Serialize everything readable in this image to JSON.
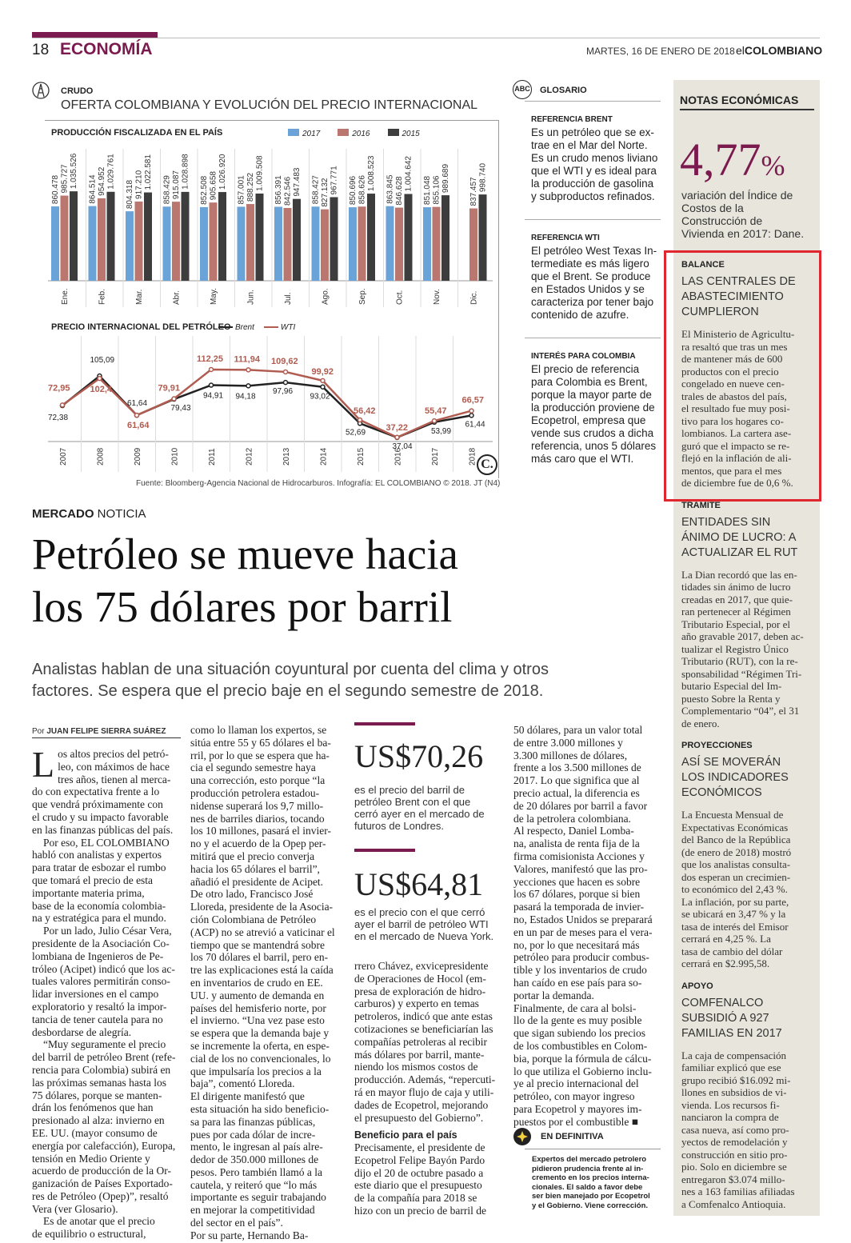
{
  "header": {
    "page_number": "18",
    "section": "ECONOMÍA",
    "date": "MARTES, 16 DE ENERO DE 2018",
    "paper_el": "el",
    "paper_name": "COLOMBIANO"
  },
  "infographic": {
    "kicker": "CRUDO",
    "title": "OFERTA COLOMBIANA Y EVOLUCIÓN DEL PRECIO INTERNACIONAL",
    "source": "Fuente: Bloomberg-Agencia Nacional de Hidrocarburos. Infografía: EL COLOMBIANO © 2018. JT (N4)",
    "logo": "C."
  },
  "chart_data": [
    {
      "type": "bar",
      "title": "PRODUCCIÓN FISCALIZADA EN EL PAÍS",
      "categories": [
        "Ene.",
        "Feb.",
        "Mar.",
        "Abr.",
        "May.",
        "Jun.",
        "Jul.",
        "Ago.",
        "Sep.",
        "Oct.",
        "Nov.",
        "Dic."
      ],
      "series": [
        {
          "name": "2017",
          "color": "#6aa3d8",
          "values": [
            860478,
            864514,
            804318,
            858429,
            852508,
            857001,
            856391,
            858427,
            850696,
            863845,
            851048,
            null
          ],
          "labels": [
            "860.478",
            "864.514",
            "804.318",
            "858.429",
            "852.508",
            "857.001",
            "856.391",
            "858.427",
            "850.696",
            "863.845",
            "851.048",
            ""
          ]
        },
        {
          "name": "2016",
          "color": "#b9776f",
          "values": [
            985727,
            954952,
            917210,
            915087,
            905658,
            888252,
            842546,
            827132,
            858626,
            846628,
            855106,
            837457
          ],
          "labels": [
            "985.727",
            "954.952",
            "917.210",
            "915.087",
            "905.658",
            "888.252",
            "842.546",
            "827.132",
            "858.626",
            "846.628",
            "855.106",
            "837.457"
          ]
        },
        {
          "name": "2015",
          "color": "#3d3d3d",
          "values": [
            1035526,
            1029761,
            1022581,
            1028898,
            1026920,
            1009508,
            947483,
            967771,
            1008523,
            1004642,
            989689,
            998740
          ],
          "labels": [
            "1.035.526",
            "1.029.761",
            "1.022.581",
            "1.028.898",
            "1.026.920",
            "1.009.508",
            "947.483",
            "967.771",
            "1.008.523",
            "1.004.642",
            "989.689",
            "998.740"
          ]
        }
      ]
    },
    {
      "type": "line",
      "title": "PRECIO INTERNACIONAL DEL PETRÓLEO",
      "x": [
        "2007",
        "2008",
        "2009",
        "2010",
        "2011",
        "2012",
        "2013",
        "2014",
        "2015",
        "2016",
        "2017",
        "2018"
      ],
      "series": [
        {
          "name": "Brent",
          "color": "#222222",
          "values": [
            72.38,
            105.09,
            61.64,
            79.43,
            94.91,
            94.18,
            97.96,
            93.02,
            52.69,
            37.04,
            53.99,
            61.44
          ],
          "labels": [
            "72,38",
            "105,09",
            "61,64",
            "79,43",
            "94,91",
            "94,18",
            "97,96",
            "93,02",
            "52,69",
            "37,04",
            "53,99",
            "61,44"
          ]
        },
        {
          "name": "WTI",
          "color": "#b05c50",
          "values": [
            72.95,
            102.4,
            61.64,
            79.91,
            112.25,
            111.94,
            109.62,
            99.92,
            56.42,
            37.22,
            55.47,
            66.57
          ],
          "labels": [
            "72,95",
            "102,4",
            "61,64",
            "79,91",
            "112,25",
            "111,94",
            "109,62",
            "99,92",
            "56,42",
            "37,22",
            "55,47",
            "66,57"
          ]
        }
      ]
    }
  ],
  "glossary": {
    "badge": "ABC",
    "title": "GLOSARIO",
    "items": [
      {
        "heading": "REFERENCIA BRENT",
        "lines": [
          "Es un petróleo que se ex-",
          "trae en el Mar del Norte.",
          "Es un crudo menos liviano",
          "que el WTI y es ideal para",
          "la producción de gasolina",
          "y subproductos refinados."
        ]
      },
      {
        "heading": "REFERENCIA WTI",
        "lines": [
          "El petróleo West Texas In-",
          "termediate es más ligero",
          "que el Brent. Se produce",
          "en Estados Unidos y se",
          "caracteriza por tener bajo",
          "contenido de azufre."
        ]
      },
      {
        "heading": "INTERÉS PARA COLOMBIA",
        "lines": [
          "El precio de referencia",
          "para Colombia es Brent,",
          "porque la mayor parte de",
          "la producción proviene de",
          "Ecopetrol, empresa que",
          "vende sus crudos a dicha",
          "referencia, unos 5 dólares",
          "más caro que el WTI."
        ]
      }
    ]
  },
  "sidebar": {
    "title": "NOTAS ECONÓMICAS",
    "big_number": "4,77",
    "big_unit": "%",
    "big_lines": [
      "variación del Índice de",
      "Costos de la",
      "Construcción de",
      "Vivienda en 2017: Dane."
    ],
    "notes": [
      {
        "label": "BALANCE",
        "head": [
          "LAS CENTRALES DE",
          "ABASTECIMIENTO",
          "CUMPLIERON"
        ],
        "lines": [
          "El Ministerio de Agricultu-",
          "ra resaltó que tras un mes",
          "de mantener más de 600",
          "productos con el precio",
          "congelado en nueve cen-",
          "trales de abastos del país,",
          "el resultado fue muy posi-",
          "tivo para los hogares co-",
          "lombianos. La cartera ase-",
          "guró que el impacto se re-",
          "flejó en la inflación de ali-",
          "mentos, que para el mes",
          "de diciembre fue de 0,6 %."
        ]
      },
      {
        "label": "TRÁMITE",
        "head": [
          "ENTIDADES SIN",
          "ÁNIMO DE LUCRO: A",
          "ACTUALIZAR EL RUT"
        ],
        "lines": [
          "La Dian recordó que las en-",
          "tidades sin ánimo de lucro",
          "creadas en 2017, que quie-",
          "ran pertenecer al Régimen",
          "Tributario Especial, por el",
          "año gravable 2017, deben ac-",
          "tualizar el Registro Único",
          "Tributario (RUT), con la re-",
          "sponsabilidad “Régimen Tri-",
          "butario Especial del Im-",
          "puesto Sobre la Renta y",
          "Complementario “04”, el 31",
          "de enero."
        ]
      },
      {
        "label": "PROYECCIONES",
        "head": [
          "ASÍ SE MOVERÁN",
          "LOS INDICADORES",
          "ECONÓMICOS"
        ],
        "lines": [
          "La Encuesta Mensual de",
          "Expectativas Económicas",
          "del Banco de la República",
          "(de enero de 2018) mostró",
          "que los analistas consulta-",
          "dos esperan un crecimien-",
          "to económico del 2,43 %.",
          "La inflación, por su parte,",
          "se ubicará en 3,47 % y la",
          "tasa de interés del Emisor",
          "cerrará en 4,25 %. La",
          "tasa de cambio del dólar",
          "cerrará en $2.995,58."
        ]
      },
      {
        "label": "APOYO",
        "head": [
          "COMFENALCO",
          "SUBSIDIÓ A 927",
          "FAMILIAS EN 2017"
        ],
        "lines": [
          "La caja de compensación",
          "familiar explicó que ese",
          "grupo recibió $16.092 mi-",
          "llones en subsidios de vi-",
          "vienda. Los recursos fi-",
          "nanciaron la compra de",
          "casa nueva, así como pro-",
          "yectos de remodelación y",
          "construcción en sitio pro-",
          "pio. Solo en diciembre se",
          "entregaron $3.074 millo-",
          "nes a 163 familias afiliadas",
          "a Comfenalco Antioquia."
        ]
      }
    ]
  },
  "article": {
    "kicker_bold": "MERCADO",
    "kicker_rest": " NOTICIA",
    "headline": [
      "Petróleo se mueve hacia",
      "los 75 dólares por barril"
    ],
    "dek": [
      "Analistas hablan de una situación coyuntural por cuenta del clima y otros",
      "factores. Se espera que el precio baje en el segundo semestre de 2018."
    ],
    "byline_pre": "Por ",
    "byline_name": "JUAN FELIPE SIERRA SUÁREZ",
    "col1": [
      "L",
      "os altos precios del petró-",
      "leo, con máximos de hace",
      "tres años, tienen al merca-",
      "do con expectativa frente a lo",
      "que vendrá próximamente con",
      "el crudo y su impacto favorable",
      "en las finanzas públicas del país.",
      "Por eso, EL COLOMBIANO",
      "habló con analistas y expertos",
      "para tratar de esbozar el rumbo",
      "que tomará el precio de esta",
      "importante materia prima,",
      "base de la economía colombia-",
      "na y estratégica para el mundo.",
      "Por un lado, Julio César Vera,",
      "presidente de la Asociación Co-",
      "lombiana de Ingenieros de Pe-",
      "tróleo (Acipet) indicó que los ac-",
      "tuales valores permitirán conso-",
      "lidar inversiones en el campo",
      "exploratorio y resaltó la impor-",
      "tancia de tener cautela para no",
      "desbordarse de alegría.",
      "“Muy seguramente el precio",
      "del barril de petróleo Brent (refe-",
      "rencia para Colombia) subirá en",
      "las próximas semanas hasta los",
      "75 dólares, porque se manten-",
      "drán los fenómenos que han",
      "presionado al alza: invierno en",
      "EE. UU. (mayor consumo de",
      "energía por calefacción), Europa,",
      "tensión en Medio Oriente y",
      "acuerdo de producción de la Or-",
      "ganización de Países Exportado-",
      "res de Petróleo (Opep)”, resaltó",
      "Vera (ver Glosario).",
      "Es de anotar que el precio",
      "de equilibrio o estructural,"
    ],
    "col2": [
      "como lo llaman los expertos, se",
      "sitúa entre 55 y 65 dólares el ba-",
      "rril, por lo que se espera que ha-",
      "cia el segundo semestre haya",
      "una corrección, esto porque “la",
      "producción petrolera estadou-",
      "nidense superará los 9,7 millo-",
      "nes de barriles diarios, tocando",
      "los 10 millones, pasará el invier-",
      "no y el acuerdo de la Opep per-",
      "mitirá que el precio converja",
      "hacia los 65 dólares el barril”,",
      "añadió el presidente de Acipet.",
      "De otro lado, Francisco José",
      "Lloreda, presidente de la Asocia-",
      "ción Colombiana de Petróleo",
      "(ACP) no se atrevió a vaticinar el",
      "tiempo que se mantendrá sobre",
      "los 70 dólares el barril, pero en-",
      "tre las explicaciones está la caída",
      "en inventarios de crudo en EE.",
      "UU. y aumento de demanda en",
      "países del hemisferio norte, por",
      "el invierno. “Una vez pase esto",
      "se espera que la demanda baje y",
      "se incremente la oferta, en espe-",
      "cial de los no convencionales, lo",
      "que impulsaría los precios a la",
      "baja”, comentó Lloreda.",
      "El dirigente manifestó que",
      "esta situación ha sido beneficio-",
      "sa para las finanzas públicas,",
      "pues por cada dólar de incre-",
      "mento, le ingresan al país alre-",
      "dedor de 350.000 millones de",
      "pesos. Pero también llamó a la",
      "cautela, y reiteró que “lo más",
      "importante es seguir trabajando",
      "en mejorar la competitividad",
      "del sector en el país”.",
      "Por su parte, Hernando Ba-"
    ],
    "quote1_value": "US$70,26",
    "quote1_lines": [
      "es el precio del barril de",
      "petróleo Brent con el que",
      "cerró ayer en el mercado de",
      "futuros de Londres."
    ],
    "quote2_value": "US$64,81",
    "quote2_lines": [
      "es el precio con el que cerró",
      "ayer el barril de petróleo WTI",
      "en el mercado de Nueva York."
    ],
    "col3": [
      "rrero Chávez, exvicepresidente",
      "de Operaciones de Hocol (em-",
      "presa de exploración de hidro-",
      "carburos) y experto en temas",
      "petroleros, indicó que ante estas",
      "cotizaciones se beneficiarían las",
      "compañías petroleras al recibir",
      "más dólares por barril, mante-",
      "niendo los mismos costos de",
      "producción. Además, “repercuti-",
      "rá en mayor flujo de caja y utili-",
      "dades de Ecopetrol, mejorando",
      "el presupuesto del Gobierno”."
    ],
    "sub_head": "Beneficio para el país",
    "col3b": [
      "Precisamente, el presidente de",
      "Ecopetrol Felipe Bayón Pardo",
      "dijo el 20 de octubre pasado a",
      "este diario que el presupuesto",
      "de la compañía para 2018 se",
      "hizo con un precio de barril de"
    ],
    "col4": [
      "50 dólares, para un valor total",
      "de entre 3.000 millones y",
      "3.300 millones de dólares,",
      "frente a los 3.500 millones de",
      "2017. Lo que significa que al",
      "precio actual, la diferencia es",
      "de 20 dólares por barril a favor",
      "de la petrolera colombiana.",
      "Al respecto, Daniel Lomba-",
      "na, analista de renta fija de la",
      "firma comisionista Acciones y",
      "Valores, manifestó que las pro-",
      "yecciones que hacen es sobre",
      "los 67 dólares, porque si bien",
      "pasará la temporada de invier-",
      "no, Estados Unidos se preparará",
      "en un par de meses para el vera-",
      "no, por lo que necesitará más",
      "petróleo para producir combus-",
      "tible y los inventarios de crudo",
      "han caído en ese país para so-",
      "portar la demanda.",
      "Finalmente, de cara al bolsi-",
      "llo de la gente es muy posible",
      "que sigan subiendo los precios",
      "de los combustibles en Colom-",
      "bia, porque la fórmula de cálcu-",
      "lo que utiliza el Gobierno inclu-",
      "ye al precio internacional del",
      "petróleo, con mayor ingreso",
      "para Ecopetrol y mayores im-",
      "puestos por el combustible ■"
    ],
    "summary_title": "EN DEFINITIVA",
    "summary_lines": [
      "Expertos del mercado petrolero",
      "pidieron prudencia frente al in-",
      "cremento en los precios interna-",
      "cionales. El saldo a favor debe",
      "ser bien manejado por Ecopetrol",
      "y el Gobierno. Viene corrección."
    ]
  }
}
